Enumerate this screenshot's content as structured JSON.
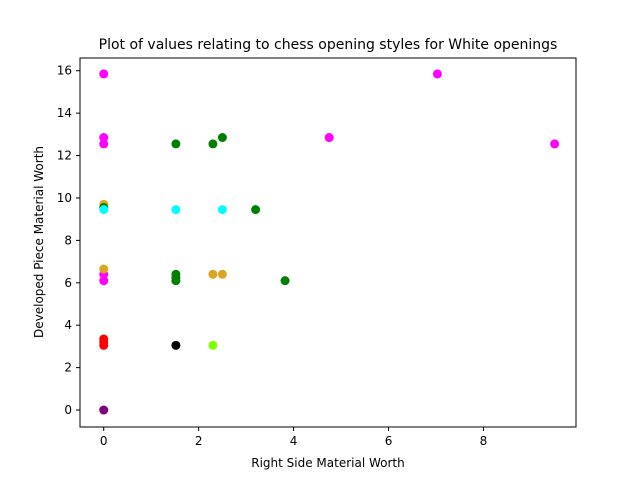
{
  "chart_data": {
    "type": "scatter",
    "title": "Plot of values relating to chess opening styles for White openings",
    "xlabel": "Right Side Material Worth",
    "ylabel": "Developed Piece Material Worth",
    "xlim": [
      -0.5,
      9.95
    ],
    "ylim": [
      -0.8,
      16.6
    ],
    "xticks": [
      0,
      2,
      4,
      6,
      8
    ],
    "yticks": [
      0,
      2,
      4,
      6,
      8,
      10,
      12,
      14,
      16
    ],
    "grid": false,
    "points": [
      {
        "x": 0,
        "y": 0,
        "color": "#800080"
      },
      {
        "x": 0,
        "y": 3.05,
        "color": "#ff0000"
      },
      {
        "x": 0,
        "y": 3.2,
        "color": "#ff0000"
      },
      {
        "x": 0,
        "y": 3.35,
        "color": "#ff0000"
      },
      {
        "x": 0,
        "y": 6.1,
        "color": "#ff00ff"
      },
      {
        "x": 0,
        "y": 6.4,
        "color": "#ff00ff"
      },
      {
        "x": 0,
        "y": 6.65,
        "color": "#daa520"
      },
      {
        "x": 0,
        "y": 9.7,
        "color": "#daa520"
      },
      {
        "x": 0,
        "y": 9.55,
        "color": "#008000"
      },
      {
        "x": 0,
        "y": 9.45,
        "color": "#00ffff"
      },
      {
        "x": 0,
        "y": 12.55,
        "color": "#ff00ff"
      },
      {
        "x": 0,
        "y": 12.85,
        "color": "#ff00ff"
      },
      {
        "x": 0,
        "y": 15.85,
        "color": "#ff00ff"
      },
      {
        "x": 1.52,
        "y": 3.05,
        "color": "#000000"
      },
      {
        "x": 1.52,
        "y": 6.1,
        "color": "#008000"
      },
      {
        "x": 1.52,
        "y": 6.25,
        "color": "#008000"
      },
      {
        "x": 1.52,
        "y": 6.4,
        "color": "#008000"
      },
      {
        "x": 1.52,
        "y": 9.45,
        "color": "#00ffff"
      },
      {
        "x": 1.52,
        "y": 12.55,
        "color": "#008000"
      },
      {
        "x": 2.3,
        "y": 3.05,
        "color": "#7fff00"
      },
      {
        "x": 2.3,
        "y": 6.4,
        "color": "#daa520"
      },
      {
        "x": 2.5,
        "y": 6.4,
        "color": "#daa520"
      },
      {
        "x": 2.3,
        "y": 12.55,
        "color": "#008000"
      },
      {
        "x": 2.5,
        "y": 12.85,
        "color": "#008000"
      },
      {
        "x": 2.5,
        "y": 9.45,
        "color": "#00ffff"
      },
      {
        "x": 3.2,
        "y": 9.45,
        "color": "#008000"
      },
      {
        "x": 3.82,
        "y": 6.1,
        "color": "#008000"
      },
      {
        "x": 4.75,
        "y": 12.85,
        "color": "#ff00ff"
      },
      {
        "x": 7.03,
        "y": 15.85,
        "color": "#ff00ff"
      },
      {
        "x": 9.5,
        "y": 12.55,
        "color": "#ff00ff"
      }
    ]
  }
}
